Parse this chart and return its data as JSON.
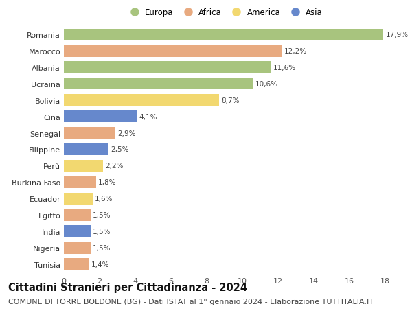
{
  "categories": [
    "Romania",
    "Marocco",
    "Albania",
    "Ucraina",
    "Bolivia",
    "Cina",
    "Senegal",
    "Filippine",
    "Perù",
    "Burkina Faso",
    "Ecuador",
    "Egitto",
    "India",
    "Nigeria",
    "Tunisia"
  ],
  "values": [
    17.9,
    12.2,
    11.6,
    10.6,
    8.7,
    4.1,
    2.9,
    2.5,
    2.2,
    1.8,
    1.6,
    1.5,
    1.5,
    1.5,
    1.4
  ],
  "labels": [
    "17,9%",
    "12,2%",
    "11,6%",
    "10,6%",
    "8,7%",
    "4,1%",
    "2,9%",
    "2,5%",
    "2,2%",
    "1,8%",
    "1,6%",
    "1,5%",
    "1,5%",
    "1,5%",
    "1,4%"
  ],
  "continents": [
    "Europa",
    "Africa",
    "Europa",
    "Europa",
    "America",
    "Asia",
    "Africa",
    "Asia",
    "America",
    "Africa",
    "America",
    "Africa",
    "Asia",
    "Africa",
    "Africa"
  ],
  "continent_colors": {
    "Europa": "#a8c47e",
    "Africa": "#e8aa80",
    "America": "#f2d870",
    "Asia": "#6688cc"
  },
  "legend_order": [
    "Europa",
    "Africa",
    "America",
    "Asia"
  ],
  "xlim": [
    0,
    18
  ],
  "xticks": [
    0,
    2,
    4,
    6,
    8,
    10,
    12,
    14,
    16,
    18
  ],
  "title": "Cittadini Stranieri per Cittadinanza - 2024",
  "subtitle": "COMUNE DI TORRE BOLDONE (BG) - Dati ISTAT al 1° gennaio 2024 - Elaborazione TUTTITALIA.IT",
  "bg_color": "#ffffff",
  "bar_height": 0.72,
  "title_fontsize": 10.5,
  "subtitle_fontsize": 8,
  "label_fontsize": 7.5,
  "tick_fontsize": 8,
  "legend_fontsize": 8.5
}
